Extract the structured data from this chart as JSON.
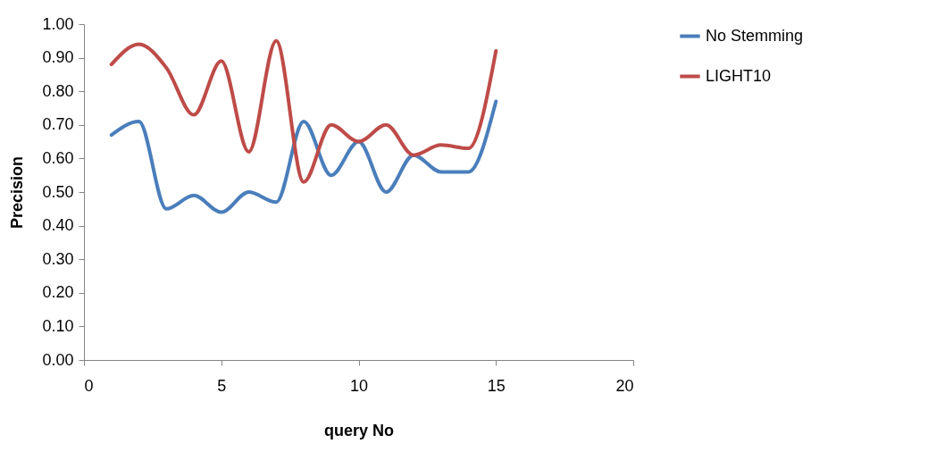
{
  "chart_data": {
    "type": "line",
    "xlabel": "query No",
    "ylabel": "Precision",
    "x": [
      1,
      2,
      3,
      4,
      5,
      6,
      7,
      8,
      9,
      10,
      11,
      12,
      13,
      14,
      15
    ],
    "series": [
      {
        "name": "No Stemming",
        "color": "#4a7ebb",
        "values": [
          0.67,
          0.71,
          0.45,
          0.49,
          0.44,
          0.5,
          0.47,
          0.71,
          0.55,
          0.65,
          0.5,
          0.61,
          0.56,
          0.56,
          0.77
        ]
      },
      {
        "name": "LIGHT10",
        "color": "#be4b48",
        "values": [
          0.88,
          0.94,
          0.87,
          0.73,
          0.89,
          0.62,
          0.95,
          0.53,
          0.7,
          0.65,
          0.7,
          0.61,
          0.64,
          0.63,
          0.92
        ]
      }
    ],
    "xlim": [
      0,
      20
    ],
    "xticks": [
      0,
      5,
      10,
      15,
      20
    ],
    "ylim": [
      0,
      1
    ],
    "yticks": [
      {
        "value": 0,
        "label": "0.00"
      },
      {
        "value": 0.1,
        "label": "0.10"
      },
      {
        "value": 0.2,
        "label": "0.20"
      },
      {
        "value": 0.3,
        "label": "0.30"
      },
      {
        "value": 0.4,
        "label": "0.40"
      },
      {
        "value": 0.5,
        "label": "0.50"
      },
      {
        "value": 0.6,
        "label": "0.60"
      },
      {
        "value": 0.7,
        "label": "0.70"
      },
      {
        "value": 0.8,
        "label": "0.80"
      },
      {
        "value": 0.9,
        "label": "0.90"
      },
      {
        "value": 1,
        "label": "1.00"
      }
    ],
    "grid": false,
    "legend": "right",
    "marker": "none",
    "line_style": "solid"
  }
}
